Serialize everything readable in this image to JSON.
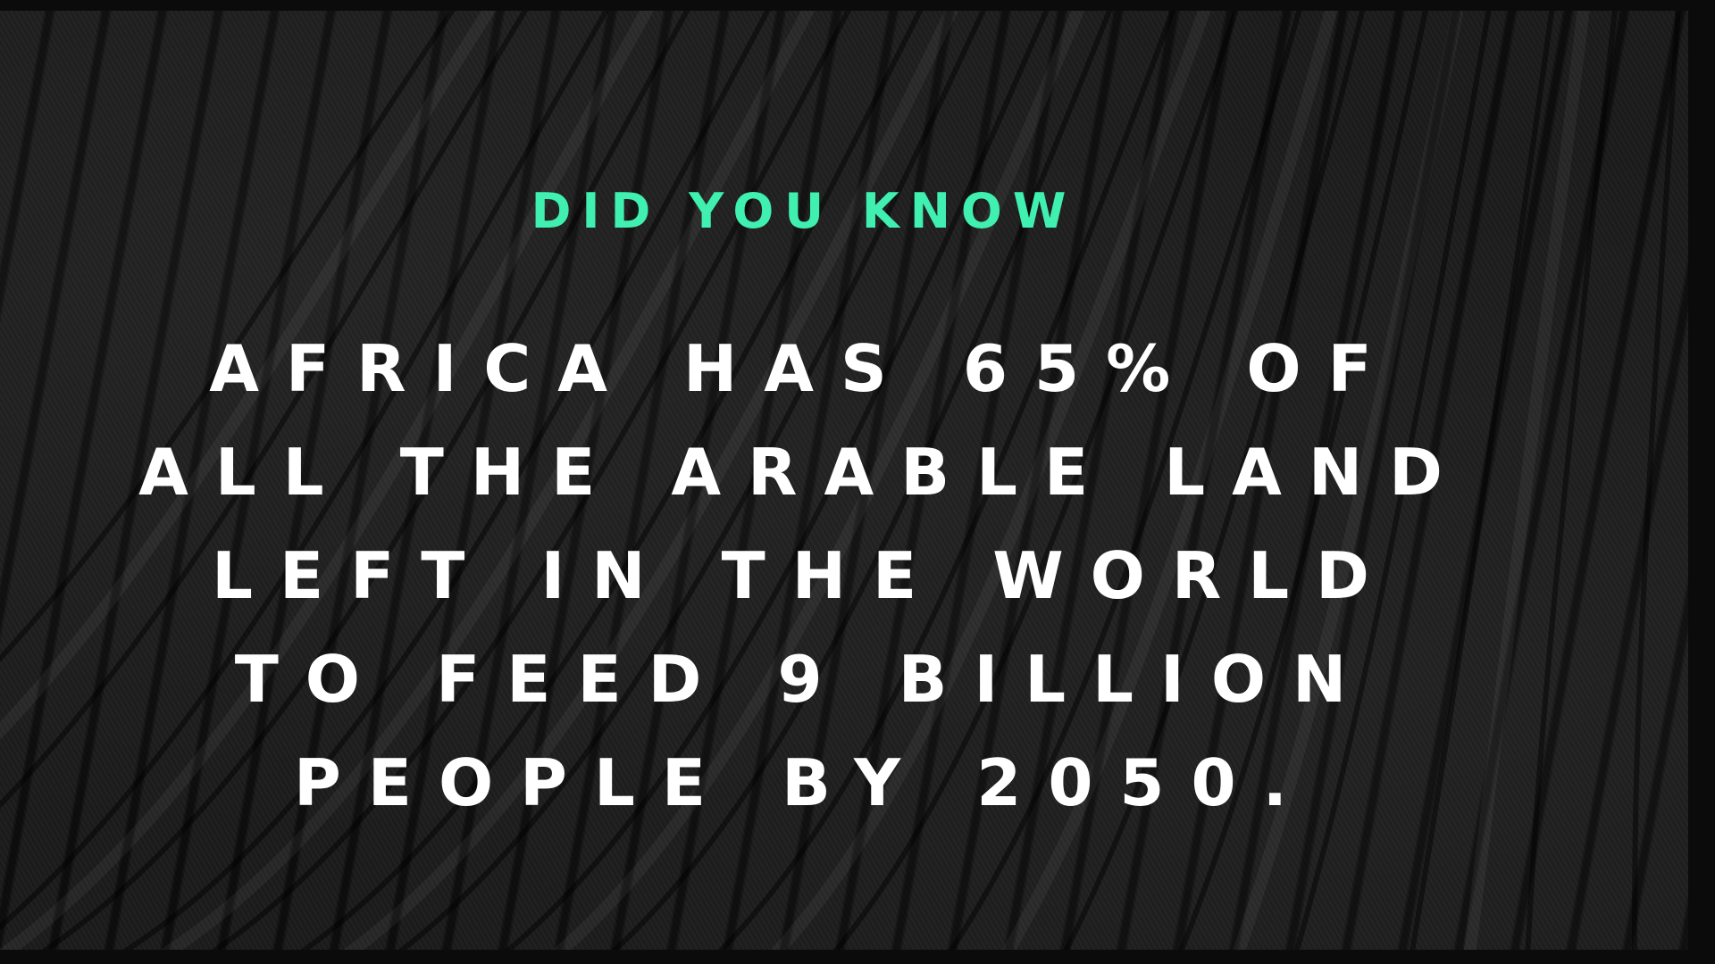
{
  "slide": {
    "kicker": "DID YOU KNOW",
    "fact": "AFRICA HAS 65% OF ALL THE ARABLE LAND LEFT IN THE WORLD TO FEED 9 BILLION PEOPLE BY 2050."
  },
  "colors": {
    "accent": "#3ff0b0",
    "text": "#ffffff",
    "background": "#1b1b1b"
  }
}
